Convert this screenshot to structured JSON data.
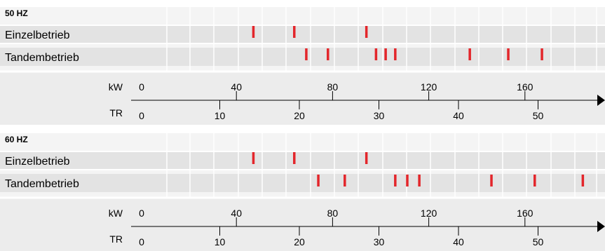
{
  "chart_data": [
    {
      "type": "scatter",
      "title": "50 HZ",
      "rows": [
        {
          "label": "Einzelbetrieb",
          "kw_values": [
            47,
            64,
            94
          ]
        },
        {
          "label": "Tandembetrieb",
          "kw_values": [
            69,
            78,
            98,
            102,
            106,
            137,
            153,
            167
          ]
        }
      ],
      "axes": {
        "kw": {
          "label": "kW",
          "range": [
            0,
            190
          ],
          "ticks": [
            0,
            40,
            80,
            120,
            160
          ]
        },
        "tr": {
          "label": "TR",
          "range": [
            0,
            54
          ],
          "ticks": [
            0,
            10,
            20,
            30,
            40,
            50
          ]
        }
      },
      "marker_color": "#e3262b",
      "grid": true
    },
    {
      "type": "scatter",
      "title": "60 HZ",
      "rows": [
        {
          "label": "Einzelbetrieb",
          "kw_values": [
            47,
            64,
            94
          ]
        },
        {
          "label": "Tandembetrieb",
          "kw_values": [
            74,
            85,
            106,
            111,
            116,
            146,
            164,
            184
          ]
        }
      ],
      "axes": {
        "kw": {
          "label": "kW",
          "range": [
            0,
            190
          ],
          "ticks": [
            0,
            40,
            80,
            120,
            160
          ]
        },
        "tr": {
          "label": "TR",
          "range": [
            0,
            54
          ],
          "ticks": [
            0,
            10,
            20,
            30,
            40,
            50
          ]
        }
      },
      "marker_color": "#e3262b",
      "grid": true
    }
  ]
}
